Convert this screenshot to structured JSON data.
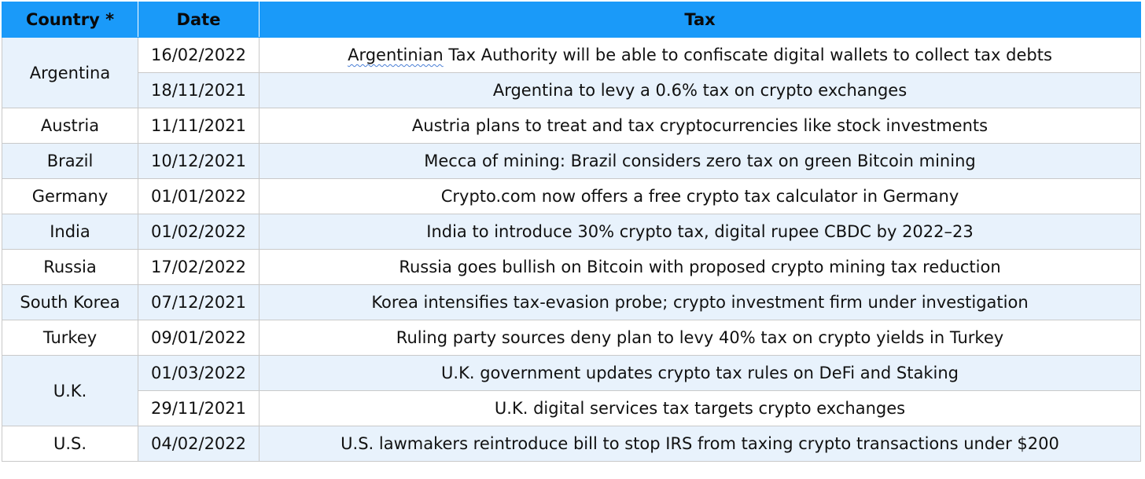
{
  "headers": {
    "country": "Country *",
    "date": "Date",
    "tax": "Tax"
  },
  "rows": [
    {
      "country": "Argentina",
      "date": "16/02/2022",
      "tax_first_word": "Argentinian",
      "tax_rest": " Tax Authority will be able to confiscate digital wallets to collect tax debts"
    },
    {
      "date": "18/11/2021",
      "tax": "Argentina to levy a 0.6% tax on crypto exchanges"
    },
    {
      "country": "Austria",
      "date": "11/11/2021",
      "tax": "Austria plans to treat and tax cryptocurrencies like stock investments"
    },
    {
      "country": "Brazil",
      "date": "10/12/2021",
      "tax": "Mecca of mining: Brazil considers zero tax on green Bitcoin mining"
    },
    {
      "country": "Germany",
      "date": "01/01/2022",
      "tax": "Crypto.com now offers a free crypto tax calculator in Germany"
    },
    {
      "country": "India",
      "date": "01/02/2022",
      "tax": "India to introduce 30% crypto tax, digital rupee CBDC by 2022–23"
    },
    {
      "country": "Russia",
      "date": "17/02/2022",
      "tax": "Russia goes bullish on Bitcoin with proposed crypto mining tax reduction"
    },
    {
      "country": "South Korea",
      "date": "07/12/2021",
      "tax": "Korea intensifies tax-evasion probe; crypto investment firm under investigation"
    },
    {
      "country": "Turkey",
      "date": "09/01/2022",
      "tax": "Ruling party sources deny plan to levy 40% tax on crypto yields in Turkey"
    },
    {
      "country": "U.K.",
      "date": "01/03/2022",
      "tax": "U.K. government updates crypto tax rules on DeFi and Staking"
    },
    {
      "date": "29/11/2021",
      "tax": "U.K. digital services tax targets crypto exchanges"
    },
    {
      "country": "U.S.",
      "date": "04/02/2022",
      "tax": "U.S. lawmakers reintroduce bill to stop IRS from taxing crypto transactions under $200"
    }
  ]
}
